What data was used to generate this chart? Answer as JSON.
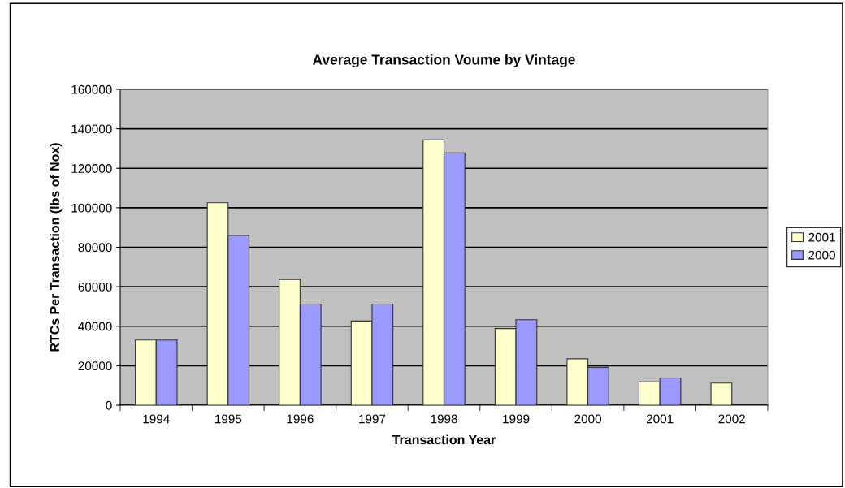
{
  "chart_data": {
    "type": "bar",
    "title": "Average Transaction Voume by Vintage",
    "xlabel": "Transaction Year",
    "ylabel": "RTCs Per Transaction (lbs of Nox)",
    "categories": [
      "1994",
      "1995",
      "1996",
      "1997",
      "1998",
      "1999",
      "2000",
      "2001",
      "2002"
    ],
    "series": [
      {
        "name": "2001",
        "color": "#ffffcc",
        "values": [
          33000,
          102500,
          63700,
          42600,
          134400,
          38800,
          23500,
          11800,
          11200
        ]
      },
      {
        "name": "2000",
        "color": "#9999ff",
        "values": [
          33000,
          86000,
          51200,
          51200,
          127800,
          43300,
          19200,
          13800,
          null
        ]
      }
    ],
    "ylim": [
      0,
      160000
    ],
    "yticks": [
      0,
      20000,
      40000,
      60000,
      80000,
      100000,
      120000,
      140000,
      160000
    ],
    "grid": "y",
    "legend": "right"
  }
}
